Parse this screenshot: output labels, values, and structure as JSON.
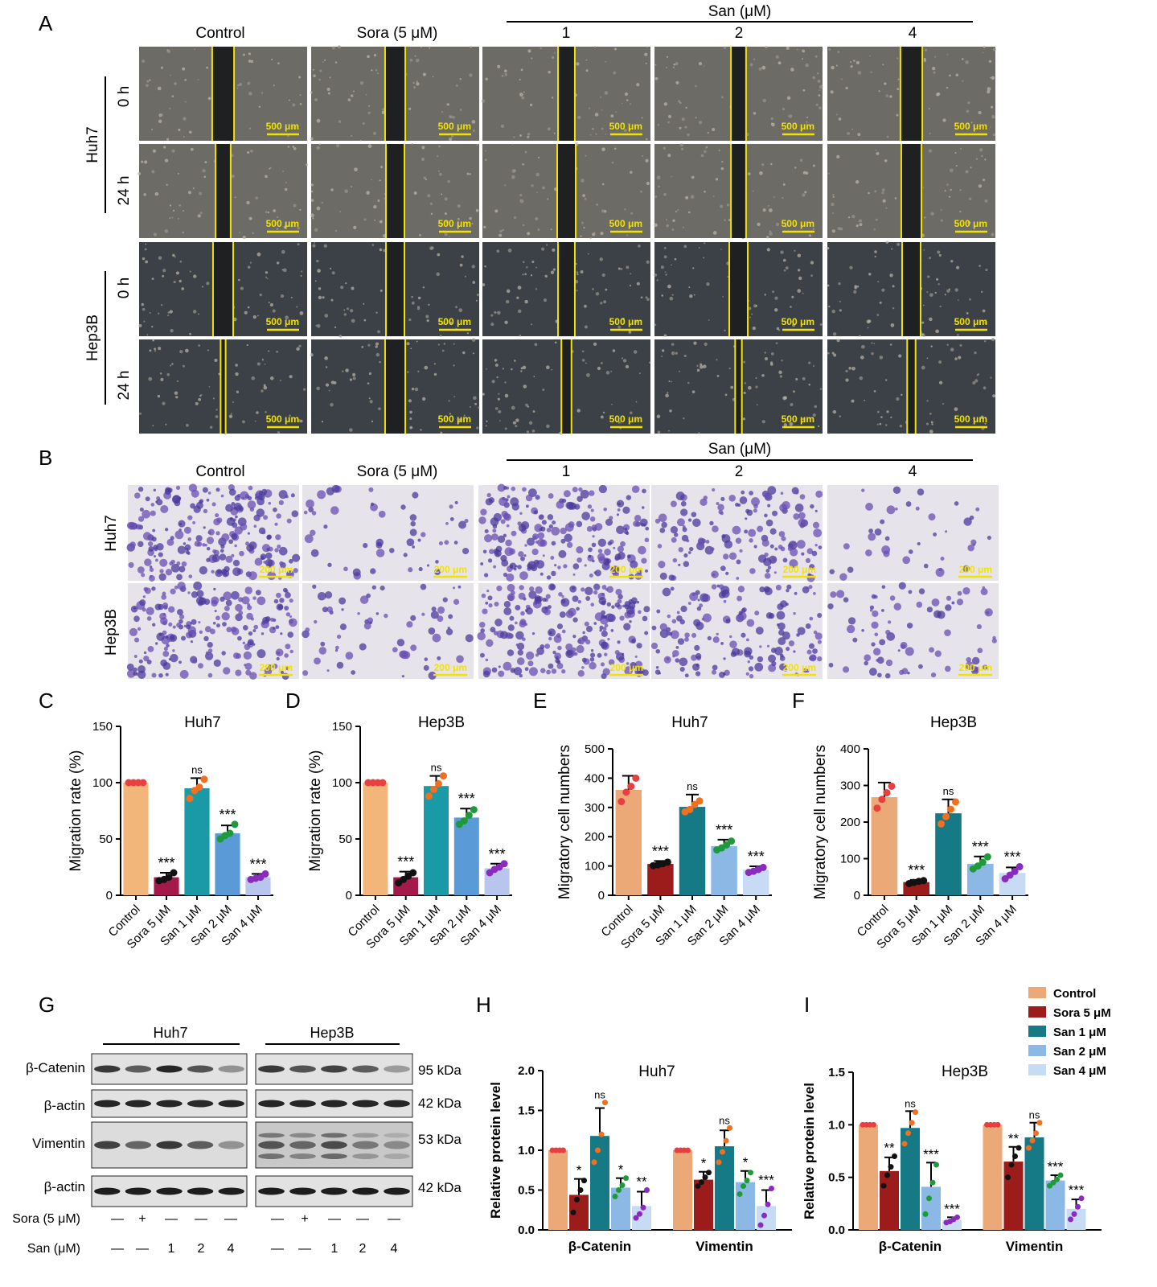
{
  "panels": {
    "A": {
      "letter": "A",
      "col_headers": [
        "Control",
        "Sora (5 μM)",
        "1",
        "2",
        "4"
      ],
      "san_header": "San (μM)",
      "cell_lines": [
        "Huh7",
        "Hep3B"
      ],
      "times": [
        "0 h",
        "24 h"
      ],
      "scale": "500 μm",
      "gap_fraction": {
        "Huh7": {
          "0 h": [
            0.13,
            0.12,
            0.1,
            0.09,
            0.13
          ],
          "24 h": [
            0.09,
            0.11,
            0.11,
            0.09,
            0.12
          ]
        },
        "Hep3B": {
          "0 h": [
            0.12,
            0.11,
            0.1,
            0.11,
            0.11
          ],
          "24 h": [
            0.03,
            0.12,
            0.06,
            0.04,
            0.05
          ]
        }
      },
      "colors": {
        "Huh7": "#6d6b66",
        "Hep3B": "#3c4147",
        "line": "#f2e200"
      }
    },
    "B": {
      "letter": "B",
      "col_headers": [
        "Control",
        "Sora (5 μM)",
        "1",
        "2",
        "4"
      ],
      "san_header": "San (μM)",
      "cell_lines": [
        "Huh7",
        "Hep3B"
      ],
      "scale": "200 μm",
      "stain_density": {
        "Huh7": [
          0.85,
          0.2,
          0.8,
          0.55,
          0.15
        ],
        "Hep3B": [
          0.75,
          0.25,
          0.85,
          0.6,
          0.3
        ]
      }
    },
    "G": {
      "letter": "G",
      "groups": [
        "Huh7",
        "Hep3B"
      ],
      "bands": [
        "β-Catenin",
        "β-actin",
        "Vimentin",
        "β-actin"
      ],
      "kda": [
        "95 kDa",
        "42 kDa",
        "53 kDa",
        "42 kDa"
      ],
      "sora_label": "Sora (5 μM)",
      "san_label": "San (μM)",
      "sora_row": [
        "—",
        "+",
        "—",
        "—",
        "—",
        "—",
        "+",
        "—",
        "—",
        "—"
      ],
      "san_row": [
        "—",
        "—",
        "1",
        "2",
        "4",
        "—",
        "—",
        "1",
        "2",
        "4"
      ],
      "intensity": {
        "Huh7": [
          [
            0.8,
            0.6,
            0.9,
            0.65,
            0.3
          ],
          [
            0.9,
            0.9,
            0.9,
            0.88,
            0.9
          ],
          [
            0.75,
            0.55,
            0.8,
            0.6,
            0.3
          ],
          [
            0.95,
            0.95,
            0.95,
            0.95,
            0.95
          ]
        ],
        "Hep3B": [
          [
            0.8,
            0.65,
            0.75,
            0.6,
            0.25
          ],
          [
            0.9,
            0.9,
            0.9,
            0.9,
            0.9
          ],
          [
            0.65,
            0.55,
            0.7,
            0.45,
            0.35
          ],
          [
            0.95,
            0.95,
            0.95,
            0.95,
            0.95
          ]
        ]
      }
    }
  },
  "legend": {
    "items": [
      "Control",
      "Sora 5 μM",
      "San 1 μM",
      "San 2 μM",
      "San 4 μM"
    ]
  },
  "chart_data": [
    {
      "id": "C",
      "letter": "C",
      "type": "bar",
      "title": "Huh7",
      "ylabel": "Migration rate (%)",
      "categories": [
        "Control",
        "Sora 5 μM",
        "San 1 μM",
        "San 2 μM",
        "San 4 μM"
      ],
      "values": [
        100,
        16,
        95,
        55,
        16
      ],
      "errors": [
        0,
        4,
        9,
        7,
        3
      ],
      "points": [
        [
          100,
          100,
          100,
          100
        ],
        [
          13,
          14,
          16,
          20
        ],
        [
          86,
          93,
          96,
          103
        ],
        [
          50,
          53,
          55,
          63
        ],
        [
          14,
          15,
          16,
          19
        ]
      ],
      "significance": [
        "",
        "***",
        "ns",
        "***",
        "***"
      ],
      "ylim": [
        0,
        150
      ],
      "yticks": [
        0,
        50,
        100,
        150
      ],
      "colors": [
        "#f3b67a",
        "#a5194a",
        "#1a9aa6",
        "#5a9ad6",
        "#b8c6ee"
      ],
      "dot_colors": [
        "#e84040",
        "#111111",
        "#f07020",
        "#1f9a3a",
        "#8a2bc0"
      ]
    },
    {
      "id": "D",
      "letter": "D",
      "type": "bar",
      "title": "Hep3B",
      "ylabel": "Migration rate (%)",
      "categories": [
        "Control",
        "Sora 5 μM",
        "San 1 μM",
        "San 2 μM",
        "San 4 μM"
      ],
      "values": [
        100,
        16,
        97,
        69,
        24
      ],
      "errors": [
        0,
        5,
        9,
        8,
        4
      ],
      "points": [
        [
          100,
          100,
          100,
          100
        ],
        [
          11,
          14,
          17,
          20
        ],
        [
          88,
          94,
          99,
          106
        ],
        [
          63,
          66,
          71,
          76
        ],
        [
          20,
          23,
          25,
          28
        ]
      ],
      "significance": [
        "",
        "***",
        "ns",
        "***",
        "***"
      ],
      "ylim": [
        0,
        150
      ],
      "yticks": [
        0,
        50,
        100,
        150
      ],
      "colors": [
        "#f3b67a",
        "#a5194a",
        "#1a9aa6",
        "#5a9ad6",
        "#b8c6ee"
      ],
      "dot_colors": [
        "#e84040",
        "#111111",
        "#f07020",
        "#1f9a3a",
        "#8a2bc0"
      ]
    },
    {
      "id": "E",
      "letter": "E",
      "type": "bar",
      "title": "Huh7",
      "ylabel": "Migratory cell numbers",
      "categories": [
        "Control",
        "Sora 5 μM",
        "San 1 μM",
        "San 2 μM",
        "San 4 μM"
      ],
      "values": [
        360,
        107,
        302,
        168,
        87
      ],
      "errors": [
        48,
        10,
        42,
        22,
        12
      ],
      "points": [
        [
          320,
          352,
          372,
          400
        ],
        [
          101,
          104,
          108,
          113
        ],
        [
          285,
          293,
          310,
          322
        ],
        [
          155,
          162,
          172,
          185
        ],
        [
          78,
          82,
          88,
          95
        ]
      ],
      "significance": [
        "",
        "***",
        "ns",
        "***",
        "***"
      ],
      "ylim": [
        0,
        500
      ],
      "yticks": [
        0,
        100,
        200,
        300,
        400,
        500
      ],
      "colors": [
        "#eba977",
        "#9c1c1c",
        "#167a86",
        "#8cb8e6",
        "#c7dcf4"
      ],
      "dot_colors": [
        "#e84040",
        "#111111",
        "#f07020",
        "#1f9a3a",
        "#8a2bc0"
      ]
    },
    {
      "id": "F",
      "letter": "F",
      "type": "bar",
      "title": "Hep3B",
      "ylabel": "Migratory cell numbers",
      "categories": [
        "Control",
        "Sora 5 μM",
        "San 1 μM",
        "San 2 μM",
        "San 4 μM"
      ],
      "values": [
        268,
        36,
        224,
        86,
        61
      ],
      "errors": [
        40,
        6,
        38,
        20,
        15
      ],
      "points": [
        [
          238,
          262,
          280,
          298
        ],
        [
          32,
          35,
          38,
          40
        ],
        [
          195,
          215,
          235,
          255
        ],
        [
          72,
          80,
          90,
          105
        ],
        [
          45,
          55,
          65,
          78
        ]
      ],
      "significance": [
        "",
        "***",
        "ns",
        "***",
        "***"
      ],
      "ylim": [
        0,
        400
      ],
      "yticks": [
        0,
        100,
        200,
        300,
        400
      ],
      "colors": [
        "#eba977",
        "#9c1c1c",
        "#167a86",
        "#8cb8e6",
        "#c7dcf4"
      ],
      "dot_colors": [
        "#e84040",
        "#111111",
        "#f07020",
        "#1f9a3a",
        "#8a2bc0"
      ]
    },
    {
      "id": "H",
      "letter": "H",
      "type": "bar",
      "title": "Huh7",
      "ylabel": "Relative protein level",
      "groups": [
        "β-Catenin",
        "Vimentin"
      ],
      "series": [
        {
          "name": "Control",
          "values": [
            1.0,
            1.0
          ],
          "errors": [
            0,
            0
          ],
          "points": [
            [
              1,
              1,
              1,
              1
            ],
            [
              1,
              1,
              1,
              1
            ]
          ],
          "sig": [
            "",
            ""
          ]
        },
        {
          "name": "Sora 5 μM",
          "values": [
            0.44,
            0.63
          ],
          "errors": [
            0.2,
            0.1
          ],
          "points": [
            [
              0.22,
              0.38,
              0.5,
              0.62
            ],
            [
              0.55,
              0.6,
              0.66,
              0.72
            ]
          ],
          "sig": [
            "*",
            "*"
          ]
        },
        {
          "name": "San 1 μM",
          "values": [
            1.18,
            1.05
          ],
          "errors": [
            0.35,
            0.2
          ],
          "points": [
            [
              0.85,
              1.0,
              1.2,
              1.6
            ],
            [
              0.85,
              0.98,
              1.12,
              1.28
            ]
          ],
          "sig": [
            "ns",
            "ns"
          ]
        },
        {
          "name": "San 2 μM",
          "values": [
            0.53,
            0.6
          ],
          "errors": [
            0.12,
            0.14
          ],
          "points": [
            [
              0.42,
              0.5,
              0.56,
              0.65
            ],
            [
              0.45,
              0.55,
              0.62,
              0.72
            ]
          ],
          "sig": [
            "*",
            "*"
          ]
        },
        {
          "name": "San 4 μM",
          "values": [
            0.3,
            0.3
          ],
          "errors": [
            0.18,
            0.2
          ],
          "points": [
            [
              0.15,
              0.2,
              0.28,
              0.5
            ],
            [
              0.06,
              0.18,
              0.32,
              0.52
            ]
          ],
          "sig": [
            "**",
            "***"
          ]
        }
      ],
      "ylim": [
        0,
        2.0
      ],
      "yticks": [
        0,
        0.5,
        1.0,
        1.5,
        2.0
      ],
      "colors": [
        "#eba977",
        "#9c1c1c",
        "#167a86",
        "#8cb8e6",
        "#c7dcf4"
      ],
      "dot_colors": [
        "#e84040",
        "#111111",
        "#f07020",
        "#1f9a3a",
        "#8a2bc0"
      ]
    },
    {
      "id": "I",
      "letter": "I",
      "type": "bar",
      "title": "Hep3B",
      "ylabel": "Relative protein level",
      "groups": [
        "β-Catenin",
        "Vimentin"
      ],
      "series": [
        {
          "name": "Control",
          "values": [
            1.0,
            1.0
          ],
          "errors": [
            0,
            0
          ],
          "points": [
            [
              1,
              1,
              1,
              1
            ],
            [
              1,
              1,
              1,
              1
            ]
          ],
          "sig": [
            "",
            ""
          ]
        },
        {
          "name": "Sora 5 μM",
          "values": [
            0.56,
            0.65
          ],
          "errors": [
            0.13,
            0.14
          ],
          "points": [
            [
              0.42,
              0.52,
              0.6,
              0.7
            ],
            [
              0.5,
              0.62,
              0.7,
              0.78
            ]
          ],
          "sig": [
            "**",
            "**"
          ]
        },
        {
          "name": "San 1 μM",
          "values": [
            0.97,
            0.88
          ],
          "errors": [
            0.16,
            0.14
          ],
          "points": [
            [
              0.82,
              0.92,
              1.02,
              1.12
            ],
            [
              0.78,
              0.85,
              0.92,
              1.02
            ]
          ],
          "sig": [
            "ns",
            "ns"
          ]
        },
        {
          "name": "San 2 μM",
          "values": [
            0.41,
            0.47
          ],
          "errors": [
            0.23,
            0.05
          ],
          "points": [
            [
              0.15,
              0.3,
              0.45,
              0.62
            ],
            [
              0.42,
              0.45,
              0.48,
              0.52
            ]
          ],
          "sig": [
            "***",
            "***"
          ]
        },
        {
          "name": "San 4 μM",
          "values": [
            0.09,
            0.2
          ],
          "errors": [
            0.03,
            0.09
          ],
          "points": [
            [
              0.07,
              0.08,
              0.1,
              0.12
            ],
            [
              0.1,
              0.15,
              0.22,
              0.3
            ]
          ],
          "sig": [
            "***",
            "***"
          ]
        }
      ],
      "ylim": [
        0,
        1.5
      ],
      "yticks": [
        0,
        0.5,
        1.0,
        1.5
      ],
      "colors": [
        "#eba977",
        "#9c1c1c",
        "#167a86",
        "#8cb8e6",
        "#c7dcf4"
      ],
      "dot_colors": [
        "#e84040",
        "#111111",
        "#f07020",
        "#1f9a3a",
        "#8a2bc0"
      ]
    }
  ]
}
